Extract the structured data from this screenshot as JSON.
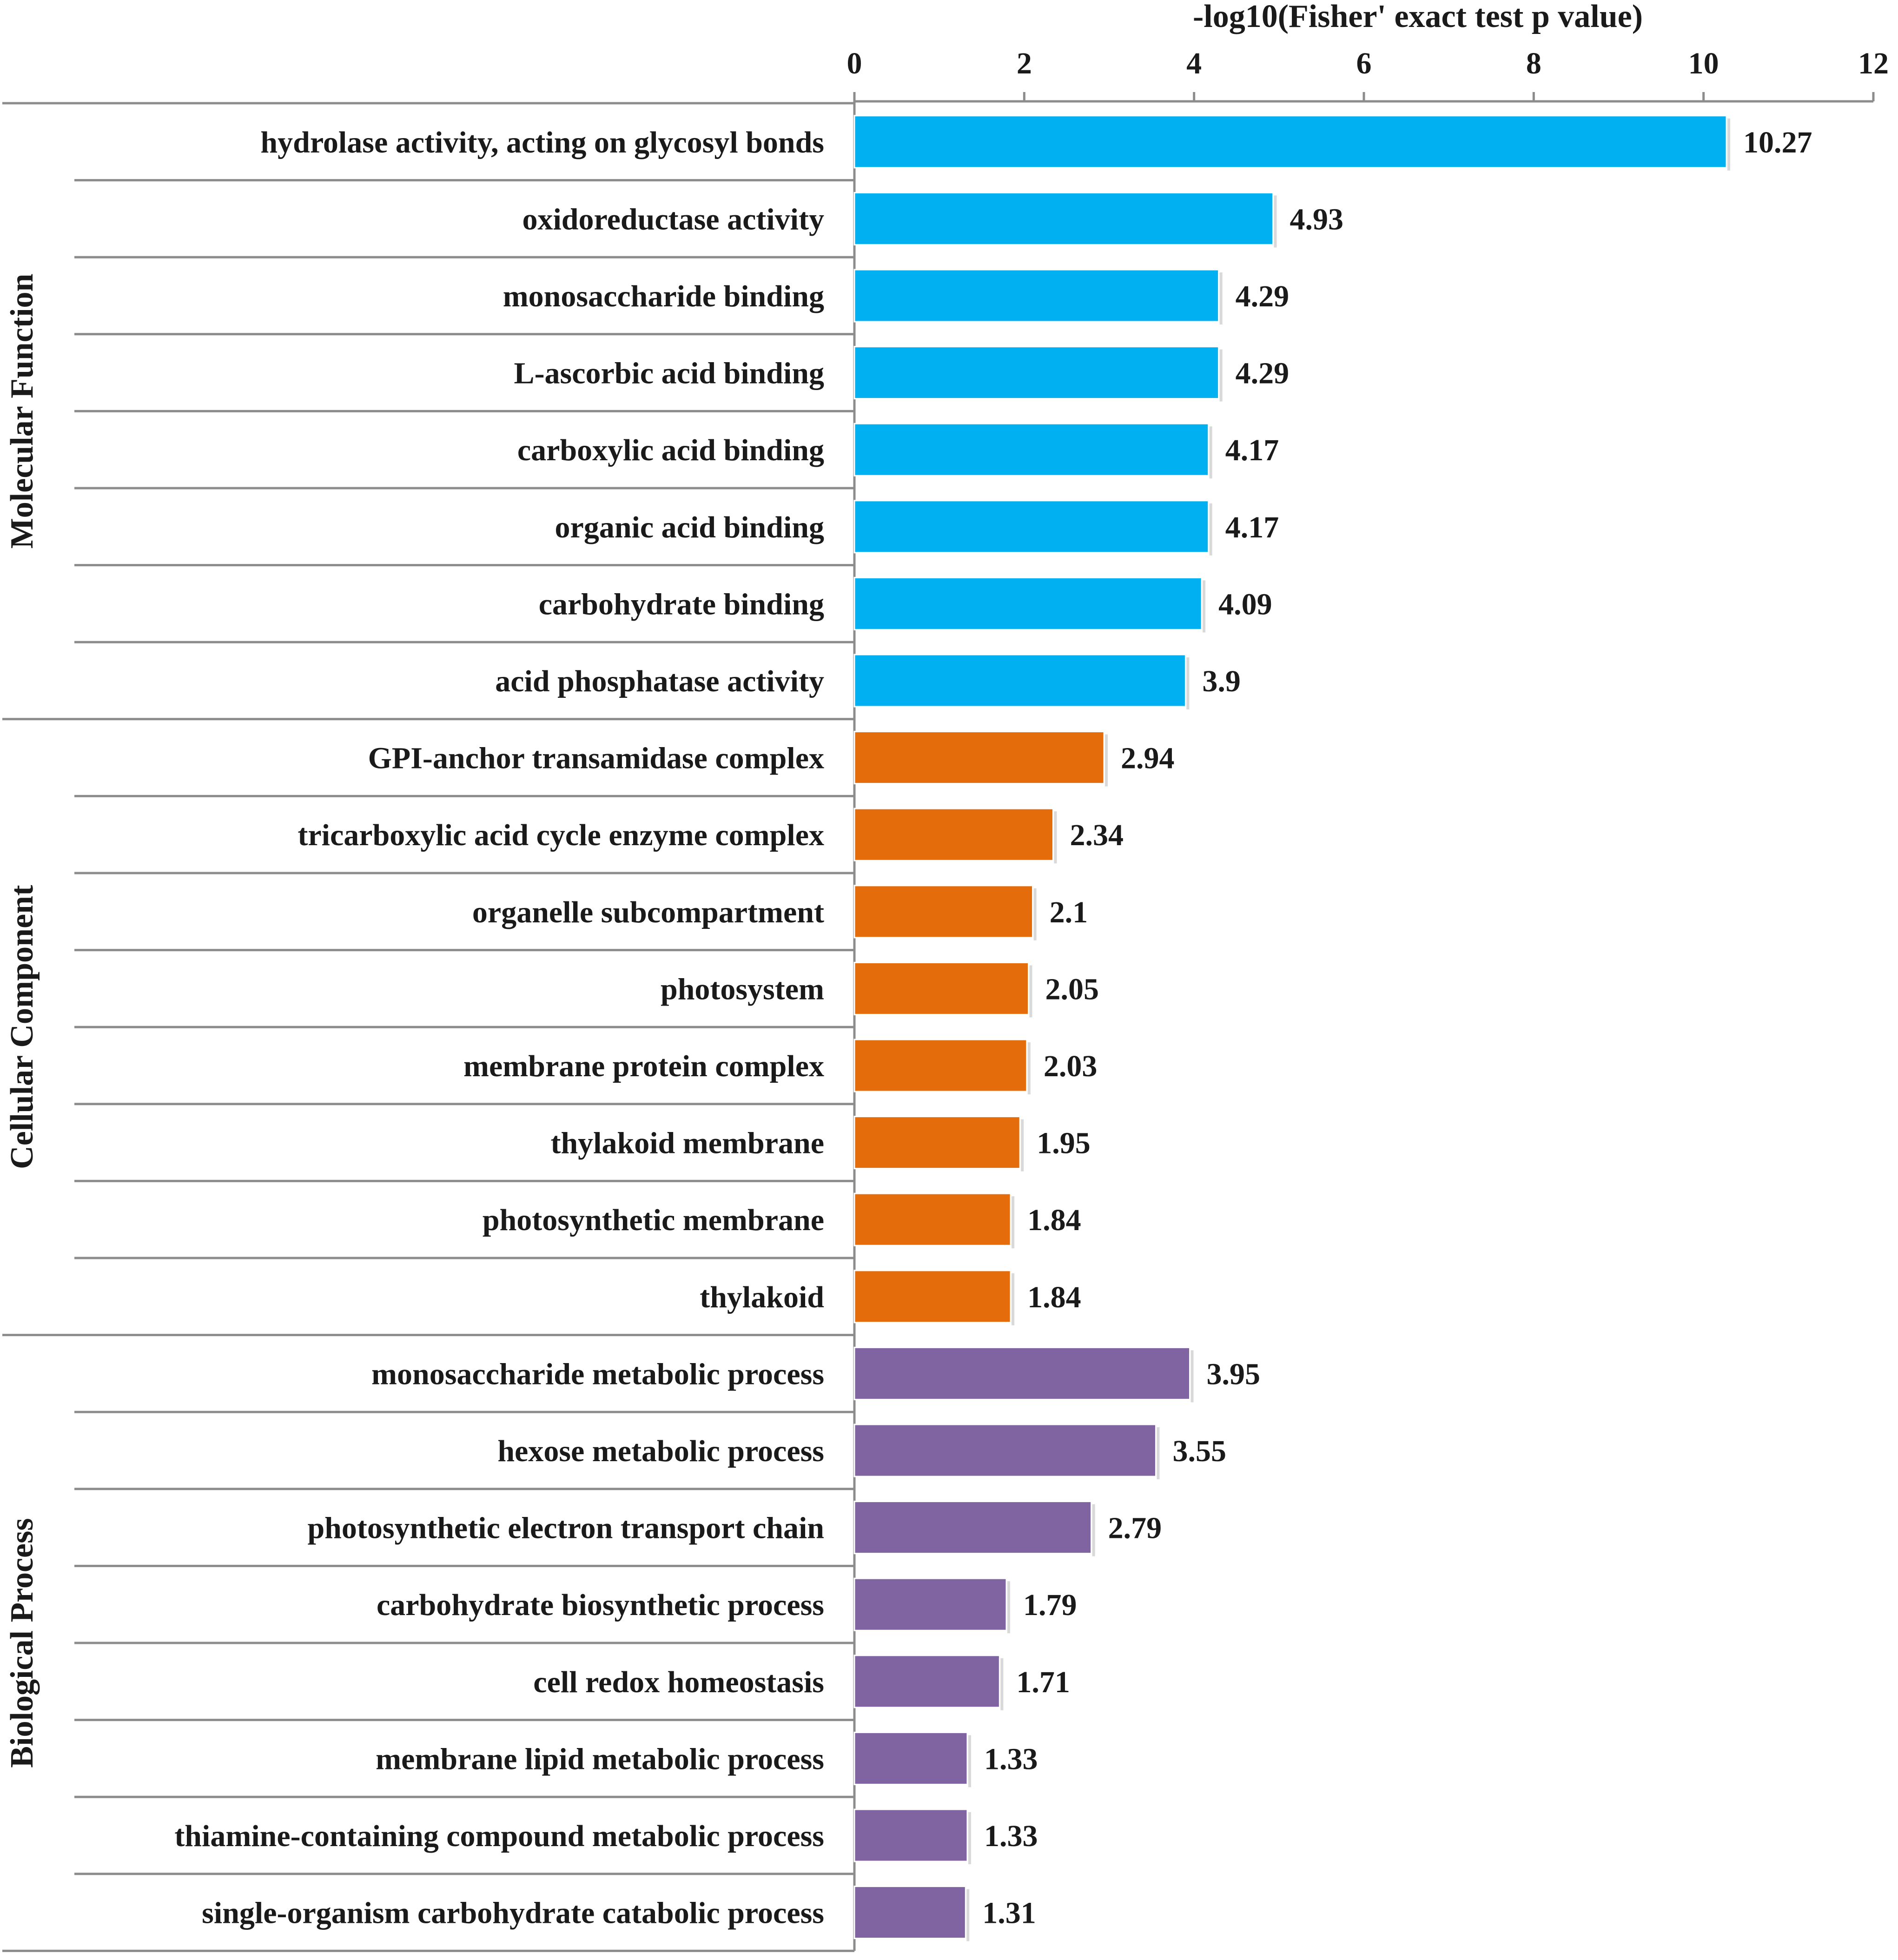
{
  "chart_data": {
    "type": "bar",
    "orientation": "horizontal",
    "title": "",
    "xlabel": "-log10(Fisher' exact test p value)",
    "ylabel": "",
    "xlim": [
      0,
      12
    ],
    "xticks": [
      "0",
      "2",
      "4",
      "6",
      "8",
      "10",
      "12"
    ],
    "grid": false,
    "legend": "none",
    "groups": [
      {
        "name": "Molecular Function",
        "color": "#00B0F0",
        "categories": [
          "hydrolase activity, acting on glycosyl bonds",
          "oxidoreductase activity",
          "monosaccharide binding",
          "L-ascorbic acid binding",
          "carboxylic acid binding",
          "organic acid binding",
          "carbohydrate binding",
          "acid phosphatase activity"
        ],
        "values": [
          10.27,
          4.93,
          4.29,
          4.29,
          4.17,
          4.17,
          4.09,
          3.9
        ],
        "value_labels": [
          "10.27",
          "4.93",
          "4.29",
          "4.29",
          "4.17",
          "4.17",
          "4.09",
          "3.9"
        ]
      },
      {
        "name": "Cellular Component",
        "color": "#E46C0A",
        "categories": [
          "GPI-anchor transamidase complex",
          "tricarboxylic acid cycle enzyme complex",
          "organelle subcompartment",
          "photosystem",
          "membrane protein complex",
          "thylakoid membrane",
          "photosynthetic membrane",
          "thylakoid"
        ],
        "values": [
          2.94,
          2.34,
          2.1,
          2.05,
          2.03,
          1.95,
          1.84,
          1.84
        ],
        "value_labels": [
          "2.94",
          "2.34",
          "2.1",
          "2.05",
          "2.03",
          "1.95",
          "1.84",
          "1.84"
        ]
      },
      {
        "name": "Biological Process",
        "color": "#8064A2",
        "categories": [
          "monosaccharide metabolic process",
          "hexose metabolic process",
          "photosynthetic electron transport chain",
          "carbohydrate biosynthetic process",
          "cell redox homeostasis",
          "membrane lipid metabolic process",
          "thiamine-containing compound metabolic process",
          "single-organism carbohydrate catabolic process"
        ],
        "values": [
          3.95,
          3.55,
          2.79,
          1.79,
          1.71,
          1.33,
          1.33,
          1.31
        ],
        "value_labels": [
          "3.95",
          "3.55",
          "2.79",
          "1.79",
          "1.71",
          "1.33",
          "1.33",
          "1.31"
        ]
      }
    ]
  }
}
